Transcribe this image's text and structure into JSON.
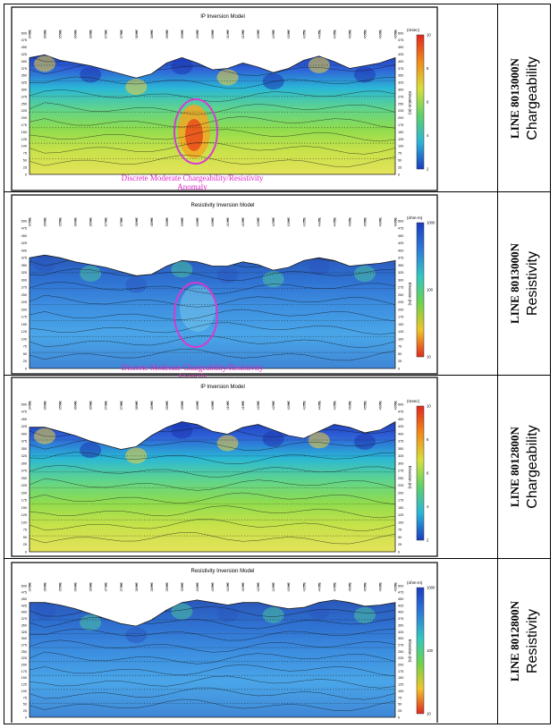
{
  "panels": [
    {
      "title": "IP Inversion Model",
      "line": "LINE 8013000N",
      "kind": "Chargeability",
      "scale_unit": "(msec)",
      "scale_ticks": [
        "10",
        "8",
        "6",
        "4",
        "2"
      ],
      "scale_type": "chargeability",
      "highlight": "high",
      "ellipse": true,
      "annotation": [
        "Discrete Moderate Chargeability/Resistivity",
        "Anomaly"
      ]
    },
    {
      "title": "Resistivity Inversion Model",
      "line": "LINE 8013000N",
      "kind": "Resistivity",
      "scale_unit": "(ohm-m)",
      "scale_ticks": [
        "1000",
        "100",
        "10"
      ],
      "scale_type": "resistivity",
      "highlight": "low",
      "ellipse": true,
      "annotation": [
        "Discrete Moderate Chargeability/Resistivity",
        "Anomaly"
      ]
    },
    {
      "title": "IP Inversion Model",
      "line": "LINE 8012800N",
      "kind": "Chargeability",
      "scale_unit": "(msec)",
      "scale_ticks": [
        "10",
        "8",
        "6",
        "4",
        "2"
      ],
      "scale_type": "chargeability",
      "highlight": "none",
      "ellipse": false,
      "annotation": []
    },
    {
      "title": "Resistivity Inversion Model",
      "line": "LINE 8012800N",
      "kind": "Resistivity",
      "scale_unit": "(ohm-m)",
      "scale_ticks": [
        "1000",
        "100",
        "10"
      ],
      "scale_type": "resistivity",
      "highlight": "none",
      "ellipse": false,
      "annotation": []
    }
  ],
  "elevation_axis_label": "Elevation (m)",
  "elevation_ticks": [
    "500",
    "475",
    "450",
    "425",
    "400",
    "375",
    "350",
    "325",
    "300",
    "275",
    "250",
    "225",
    "200",
    "175",
    "150",
    "125",
    "100",
    "75",
    "50",
    "25",
    "0"
  ],
  "station_ticks": [
    "3450E",
    "3500E",
    "3550E",
    "3600E",
    "3650E",
    "3700E",
    "3750E",
    "3800E",
    "3850E",
    "3900E",
    "3950E",
    "4000E",
    "4050E",
    "4100E",
    "4150E",
    "4200E",
    "4250E",
    "4300E",
    "4350E",
    "4400E",
    "4450E",
    "4500E",
    "4550E",
    "4600E",
    "4650E"
  ],
  "colors": {
    "annotation": "#e024c8",
    "ellipse": "#d63bd0"
  }
}
